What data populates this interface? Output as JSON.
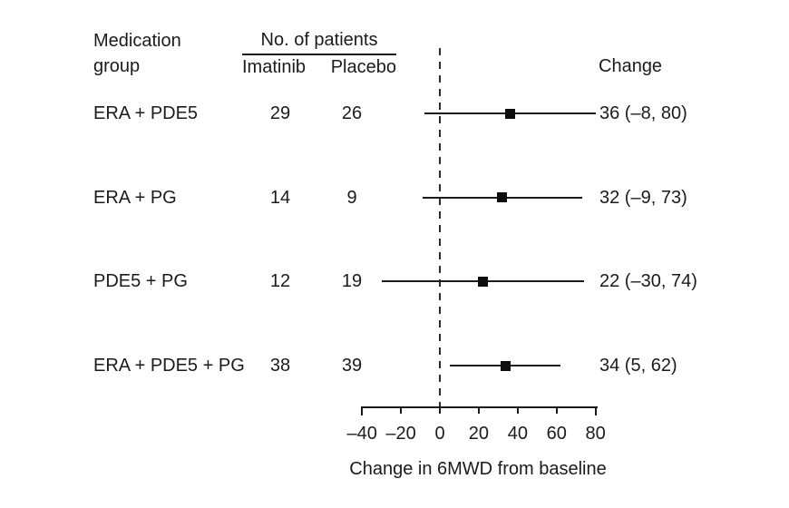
{
  "chart_data": {
    "type": "forest",
    "columns": {
      "group_line1": "Medication",
      "group_line2": "group",
      "patients_header": "No. of patients",
      "imatinib": "Imatinib",
      "placebo": "Placebo",
      "change": "Change"
    },
    "rows": [
      {
        "group": "ERA + PDE5",
        "imatinib_n": "29",
        "placebo_n": "26",
        "estimate": 36,
        "ci_low": -8,
        "ci_high": 80,
        "change_label": "36 (–8, 80)"
      },
      {
        "group": "ERA + PG",
        "imatinib_n": "14",
        "placebo_n": "9",
        "estimate": 32,
        "ci_low": -9,
        "ci_high": 73,
        "change_label": "32 (–9, 73)"
      },
      {
        "group": "PDE5 + PG",
        "imatinib_n": "12",
        "placebo_n": "19",
        "estimate": 22,
        "ci_low": -30,
        "ci_high": 74,
        "change_label": "22 (–30, 74)"
      },
      {
        "group": "ERA + PDE5 + PG",
        "imatinib_n": "38",
        "placebo_n": "39",
        "estimate": 34,
        "ci_low": 5,
        "ci_high": 62,
        "change_label": "34 (5, 62)"
      }
    ],
    "x_axis": {
      "range": [
        -40,
        80
      ],
      "ticks": [
        -40,
        -20,
        0,
        20,
        40,
        60,
        80
      ],
      "tick_labels": [
        "–40",
        "–20",
        "0",
        "20",
        "40",
        "60",
        "80"
      ],
      "label": "Change in 6MWD from baseline",
      "reference_line": 0,
      "grid": false
    },
    "colors": {
      "line": "#1b1b1b",
      "marker": "#0d0d0d",
      "text": "#1b1b1b",
      "background": "#ffffff"
    }
  }
}
